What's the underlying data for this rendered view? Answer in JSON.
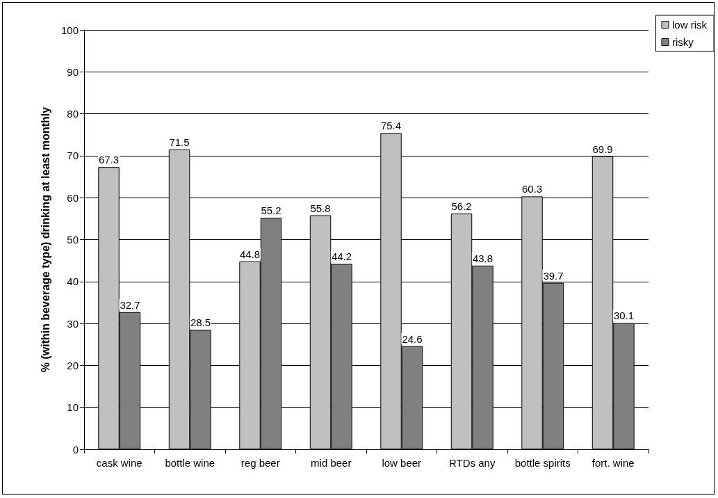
{
  "chart_data": {
    "type": "bar",
    "ylabel": "% (within beverage type) drinking at least monthly",
    "categories": [
      "cask wine",
      "bottle wine",
      "reg beer",
      "mid beer",
      "low beer",
      "RTDs any",
      "bottle spirits",
      "fort. wine"
    ],
    "series": [
      {
        "name": "low risk",
        "color": "#c0c0c0",
        "values": [
          67.3,
          71.5,
          44.8,
          55.8,
          75.4,
          56.2,
          60.3,
          69.9
        ]
      },
      {
        "name": "risky",
        "color": "#808080",
        "values": [
          32.7,
          28.5,
          55.2,
          44.2,
          24.6,
          43.8,
          39.7,
          30.1
        ]
      }
    ],
    "ylim": [
      0,
      100
    ],
    "yticks": [
      0,
      10,
      20,
      30,
      40,
      50,
      60,
      70,
      80,
      90,
      100
    ],
    "grid": "y",
    "legend": "top right",
    "data_labels": true
  }
}
